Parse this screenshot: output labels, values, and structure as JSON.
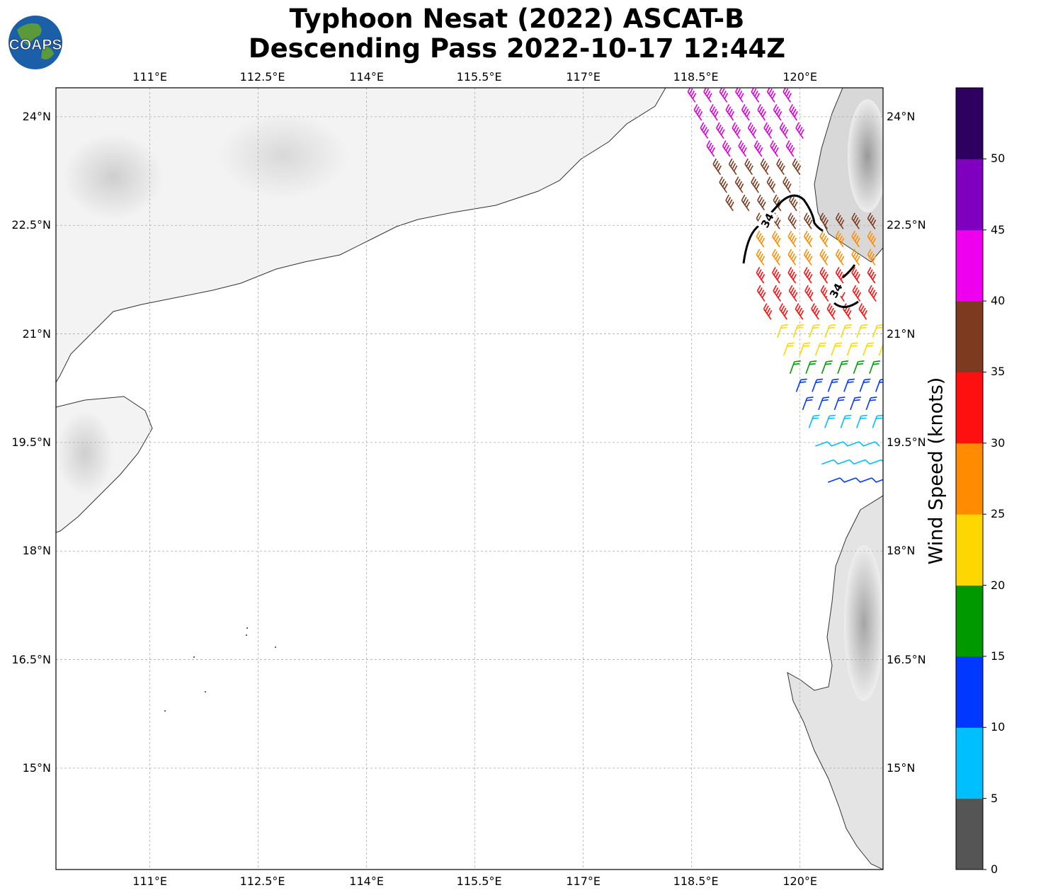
{
  "title": {
    "line1": "Typhoon Nesat (2022) ASCAT-B",
    "line2": "Descending Pass 2022-10-17 12:44Z"
  },
  "logo": {
    "text": "COAPS"
  },
  "map": {
    "lon_range": [
      109.7,
      121.15
    ],
    "lat_range": [
      13.6,
      24.4
    ],
    "lon_ticks": [
      "111°E",
      "112.5°E",
      "114°E",
      "115.5°E",
      "117°E",
      "118.5°E",
      "120°E"
    ],
    "lat_ticks": [
      "24°N",
      "22.5°N",
      "21°N",
      "19.5°N",
      "18°N",
      "16.5°N",
      "15°N"
    ],
    "lon_tick_values": [
      111,
      112.5,
      114,
      115.5,
      117,
      118.5,
      120
    ],
    "lat_tick_values": [
      24,
      22.5,
      21,
      19.5,
      18,
      16.5,
      15
    ],
    "contour_label": "34",
    "gridlines": true
  },
  "colorbar": {
    "label": "Wind Speed (knots)",
    "ticks": [
      "0",
      "5",
      "10",
      "15",
      "20",
      "25",
      "30",
      "35",
      "40",
      "45",
      "50"
    ],
    "colors": [
      "#555555",
      "#00bfff",
      "#0038ff",
      "#009900",
      "#ffd700",
      "#ff8c00",
      "#ff1010",
      "#7d3a1e",
      "#ee00ee",
      "#8000bf",
      "#2e0060"
    ]
  }
}
